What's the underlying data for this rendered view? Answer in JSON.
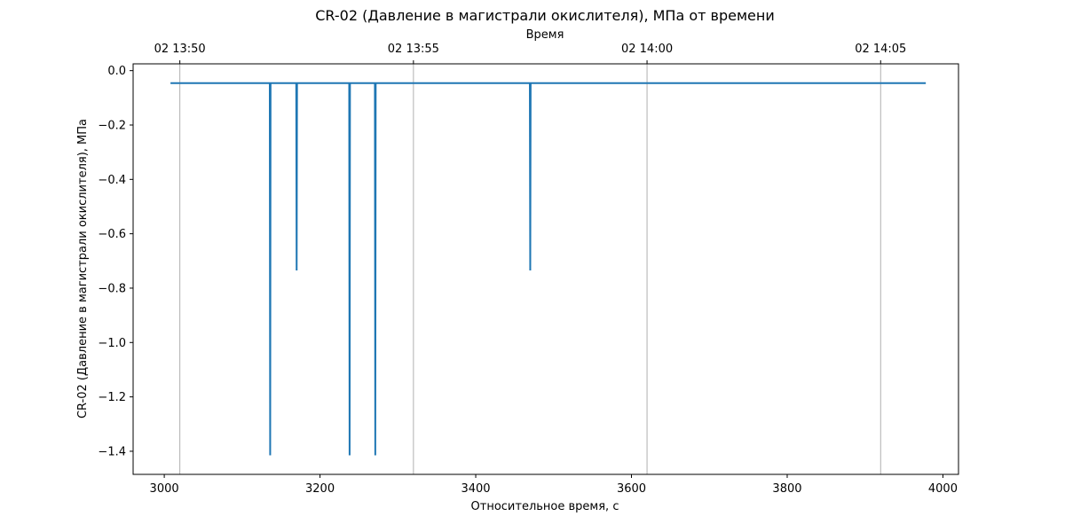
{
  "chart_data": {
    "type": "line",
    "title": "CR-02 (Давление в магистрали окислителя), МПа от времени",
    "xlabel": "Относительное время, с",
    "ylabel": "CR-02 (Давление в магистрали окислителя), МПа",
    "top_xlabel": "Время",
    "xlim": [
      2960,
      4020
    ],
    "ylim": [
      -1.485,
      0.025
    ],
    "xticks": [
      3000,
      3200,
      3400,
      3600,
      3800,
      4000
    ],
    "xtick_labels": [
      "3000",
      "3200",
      "3400",
      "3600",
      "3800",
      "4000"
    ],
    "yticks": [
      0.0,
      -0.2,
      -0.4,
      -0.6,
      -0.8,
      -1.0,
      -1.2,
      -1.4
    ],
    "ytick_labels": [
      "0.0",
      "−0.2",
      "−0.4",
      "−0.6",
      "−0.8",
      "−1.0",
      "−1.2",
      "−1.4"
    ],
    "top_xticks": [
      3020,
      3320,
      3620,
      3920
    ],
    "top_xtick_labels": [
      "02 13:50",
      "02 13:55",
      "02 14:00",
      "02 14:05"
    ],
    "grid": "vertical at top-axis ticks",
    "series": [
      {
        "color": "#1f77b4",
        "x": [
          3008,
          3135.5,
          3136,
          3136.5,
          3169.5,
          3170,
          3170.5,
          3237.5,
          3238,
          3238.5,
          3270.5,
          3271,
          3271.5,
          3469.5,
          3470,
          3470.5,
          3978
        ],
        "y": [
          -0.046,
          -0.046,
          -1.415,
          -0.046,
          -0.046,
          -0.735,
          -0.046,
          -0.046,
          -1.415,
          -0.046,
          -0.046,
          -1.415,
          -0.046,
          -0.046,
          -0.735,
          -0.046,
          -0.046
        ]
      }
    ],
    "grid_color": "#b0b0b0"
  }
}
